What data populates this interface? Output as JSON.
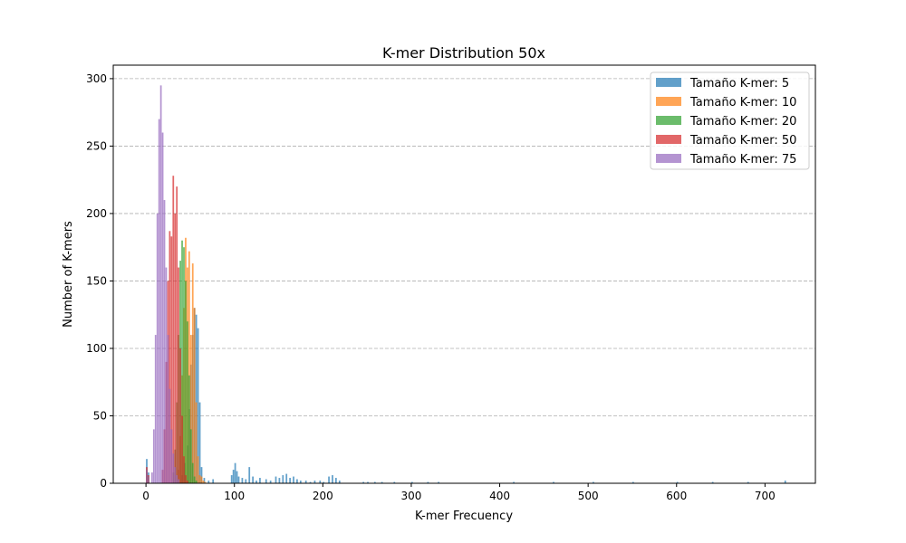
{
  "chart_data": {
    "type": "histogram",
    "title": "K-mer Distribution 50x",
    "xlabel": "K-mer Frecuency",
    "ylabel": "Number of K-mers",
    "xlim": [
      -37,
      757
    ],
    "ylim": [
      0,
      310
    ],
    "xticks": [
      0,
      100,
      200,
      300,
      400,
      500,
      600,
      700
    ],
    "yticks": [
      0,
      50,
      100,
      150,
      200,
      250,
      300
    ],
    "grid": {
      "axis": "y",
      "style": "dashed"
    },
    "legend_position": "top-right",
    "bar_opacity": 0.7,
    "series": [
      {
        "name": "Tamaño K-mer: 5",
        "color": "#1f77b4",
        "bins": [
          [
            0,
            18
          ],
          [
            2,
            8
          ],
          [
            40,
            6
          ],
          [
            43,
            15
          ],
          [
            46,
            28
          ],
          [
            48,
            55
          ],
          [
            50,
            88
          ],
          [
            52,
            110
          ],
          [
            54,
            130
          ],
          [
            56,
            125
          ],
          [
            58,
            115
          ],
          [
            60,
            60
          ],
          [
            62,
            12
          ],
          [
            65,
            4
          ],
          [
            70,
            2
          ],
          [
            75,
            3
          ],
          [
            96,
            6
          ],
          [
            98,
            10
          ],
          [
            100,
            15
          ],
          [
            102,
            9
          ],
          [
            104,
            5
          ],
          [
            108,
            4
          ],
          [
            112,
            3
          ],
          [
            116,
            12
          ],
          [
            120,
            5
          ],
          [
            124,
            2
          ],
          [
            128,
            4
          ],
          [
            135,
            3
          ],
          [
            140,
            2
          ],
          [
            146,
            5
          ],
          [
            150,
            4
          ],
          [
            154,
            6
          ],
          [
            158,
            7
          ],
          [
            162,
            4
          ],
          [
            166,
            5
          ],
          [
            170,
            3
          ],
          [
            174,
            2
          ],
          [
            180,
            2
          ],
          [
            185,
            1
          ],
          [
            190,
            2
          ],
          [
            196,
            2
          ],
          [
            200,
            1
          ],
          [
            206,
            5
          ],
          [
            210,
            6
          ],
          [
            214,
            4
          ],
          [
            218,
            2
          ],
          [
            245,
            1
          ],
          [
            250,
            1
          ],
          [
            258,
            1
          ],
          [
            266,
            1
          ],
          [
            280,
            1
          ],
          [
            300,
            1
          ],
          [
            318,
            1
          ],
          [
            330,
            1
          ],
          [
            415,
            1
          ],
          [
            460,
            1
          ],
          [
            505,
            1
          ],
          [
            550,
            1
          ],
          [
            600,
            1
          ],
          [
            640,
            1
          ],
          [
            680,
            1
          ],
          [
            722,
            2
          ]
        ]
      },
      {
        "name": "Tamaño K-mer: 10",
        "color": "#ff7f0e",
        "bins": [
          [
            0,
            10
          ],
          [
            2,
            5
          ],
          [
            36,
            10
          ],
          [
            38,
            35
          ],
          [
            40,
            80
          ],
          [
            42,
            130
          ],
          [
            44,
            182
          ],
          [
            46,
            160
          ],
          [
            48,
            172
          ],
          [
            50,
            110
          ],
          [
            52,
            163
          ],
          [
            54,
            130
          ],
          [
            56,
            60
          ],
          [
            58,
            20
          ],
          [
            60,
            6
          ],
          [
            62,
            5
          ],
          [
            64,
            2
          ],
          [
            66,
            1
          ]
        ]
      },
      {
        "name": "Tamaño K-mer: 20",
        "color": "#2ca02c",
        "bins": [
          [
            0,
            10
          ],
          [
            2,
            5
          ],
          [
            30,
            8
          ],
          [
            32,
            25
          ],
          [
            34,
            60
          ],
          [
            36,
            110
          ],
          [
            38,
            165
          ],
          [
            40,
            180
          ],
          [
            42,
            175
          ],
          [
            44,
            150
          ],
          [
            46,
            120
          ],
          [
            48,
            80
          ],
          [
            50,
            40
          ],
          [
            52,
            15
          ],
          [
            54,
            5
          ],
          [
            56,
            2
          ]
        ]
      },
      {
        "name": "Tamaño K-mer: 50",
        "color": "#d62728",
        "bins": [
          [
            0,
            12
          ],
          [
            2,
            6
          ],
          [
            18,
            10
          ],
          [
            20,
            40
          ],
          [
            22,
            90
          ],
          [
            24,
            150
          ],
          [
            26,
            187
          ],
          [
            28,
            183
          ],
          [
            30,
            228
          ],
          [
            32,
            200
          ],
          [
            34,
            220
          ],
          [
            36,
            160
          ],
          [
            38,
            100
          ],
          [
            40,
            50
          ],
          [
            42,
            20
          ],
          [
            44,
            6
          ],
          [
            46,
            2
          ]
        ]
      },
      {
        "name": "Tamaño K-mer: 75",
        "color": "#9467bd",
        "bins": [
          [
            0,
            10
          ],
          [
            2,
            5
          ],
          [
            6,
            8
          ],
          [
            8,
            40
          ],
          [
            10,
            110
          ],
          [
            12,
            200
          ],
          [
            14,
            270
          ],
          [
            16,
            295
          ],
          [
            18,
            260
          ],
          [
            20,
            210
          ],
          [
            22,
            160
          ],
          [
            24,
            110
          ],
          [
            26,
            70
          ],
          [
            28,
            40
          ],
          [
            30,
            22
          ],
          [
            32,
            12
          ],
          [
            34,
            6
          ],
          [
            36,
            3
          ]
        ]
      }
    ]
  }
}
